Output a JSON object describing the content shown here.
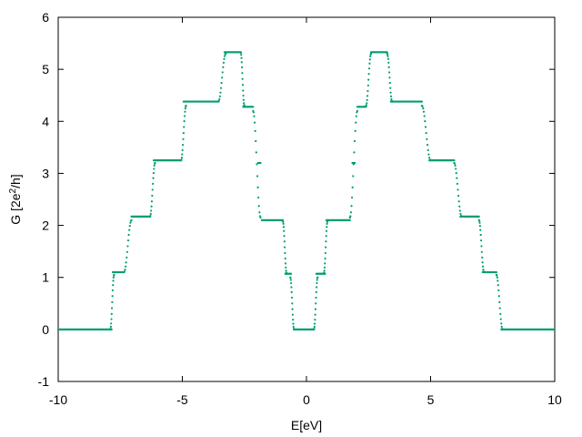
{
  "chart_data": {
    "type": "scatter",
    "title": "",
    "xlabel": "E[eV]",
    "ylabel": {
      "base": "G [2e",
      "sup": "2",
      "tail": "/h]"
    },
    "xlim": [
      -10,
      10
    ],
    "ylim": [
      -1,
      6
    ],
    "xticks": [
      -10,
      -5,
      0,
      5,
      10
    ],
    "yticks": [
      -1,
      0,
      1,
      2,
      3,
      4,
      5,
      6
    ],
    "grid": false,
    "legend": "none",
    "marker_color": "#009e73",
    "series": [
      {
        "points_step_plateaus": [
          {
            "x0": -10.0,
            "x1": -7.85,
            "y": 0.0
          },
          {
            "x0": -7.8,
            "x1": -7.35,
            "y": 1.1
          },
          {
            "x0": -7.05,
            "x1": -6.3,
            "y": 2.17
          },
          {
            "x0": -6.15,
            "x1": -5.05,
            "y": 3.25
          },
          {
            "x0": -4.95,
            "x1": -3.55,
            "y": 4.38
          },
          {
            "x0": -3.3,
            "x1": -2.65,
            "y": 5.33
          },
          {
            "x0": -2.55,
            "x1": -2.15,
            "y": 4.28
          },
          {
            "x0": -1.95,
            "x1": -1.85,
            "y": 3.2
          },
          {
            "x0": -1.8,
            "x1": -0.95,
            "y": 2.1
          },
          {
            "x0": -0.85,
            "x1": -0.62,
            "y": 1.07
          },
          {
            "x0": -0.5,
            "x1": 0.3,
            "y": 0.0
          },
          {
            "x0": 0.4,
            "x1": 0.75,
            "y": 1.07
          },
          {
            "x0": 0.8,
            "x1": 1.75,
            "y": 2.1
          },
          {
            "x0": 1.85,
            "x1": 1.95,
            "y": 3.2
          },
          {
            "x0": 2.05,
            "x1": 2.4,
            "y": 4.28
          },
          {
            "x0": 2.6,
            "x1": 3.25,
            "y": 5.33
          },
          {
            "x0": 3.4,
            "x1": 4.65,
            "y": 4.38
          },
          {
            "x0": 4.95,
            "x1": 5.95,
            "y": 3.25
          },
          {
            "x0": 6.2,
            "x1": 6.95,
            "y": 2.17
          },
          {
            "x0": 7.1,
            "x1": 7.65,
            "y": 1.1
          },
          {
            "x0": 7.85,
            "x1": 10.0,
            "y": 0.0
          }
        ],
        "rises": [
          {
            "x0": -7.9,
            "x1": -7.75,
            "y0": 0.0,
            "y1": 1.05
          },
          {
            "x0": -7.35,
            "x1": -7.05,
            "y0": 1.1,
            "y1": 2.1
          },
          {
            "x0": -6.3,
            "x1": -6.1,
            "y0": 2.17,
            "y1": 3.2
          },
          {
            "x0": -5.05,
            "x1": -4.85,
            "y0": 3.25,
            "y1": 4.3
          },
          {
            "x0": -3.55,
            "x1": -3.25,
            "y0": 4.38,
            "y1": 5.3
          },
          {
            "x0": -2.65,
            "x1": -2.5,
            "y0": 5.33,
            "y1": 4.3
          },
          {
            "x0": -2.15,
            "x1": -1.85,
            "y0": 4.2,
            "y1": 2.15
          },
          {
            "x0": -0.95,
            "x1": -0.8,
            "y0": 2.08,
            "y1": 1.08
          },
          {
            "x0": -0.65,
            "x1": -0.5,
            "y0": 1.0,
            "y1": 0.0
          },
          {
            "x0": 0.3,
            "x1": 0.45,
            "y0": 0.0,
            "y1": 1.0
          },
          {
            "x0": 0.7,
            "x1": 0.85,
            "y0": 1.08,
            "y1": 2.08
          },
          {
            "x0": 1.75,
            "x1": 2.05,
            "y0": 2.15,
            "y1": 4.2
          },
          {
            "x0": 2.4,
            "x1": 2.6,
            "y0": 4.3,
            "y1": 5.3
          },
          {
            "x0": 3.25,
            "x1": 3.45,
            "y0": 5.3,
            "y1": 4.38
          },
          {
            "x0": 4.65,
            "x1": 5.0,
            "y0": 4.3,
            "y1": 3.25
          },
          {
            "x0": 5.95,
            "x1": 6.25,
            "y0": 3.2,
            "y1": 2.17
          },
          {
            "x0": 6.95,
            "x1": 7.15,
            "y0": 2.1,
            "y1": 1.1
          },
          {
            "x0": 7.65,
            "x1": 7.9,
            "y0": 1.05,
            "y1": 0.0
          }
        ]
      }
    ]
  }
}
